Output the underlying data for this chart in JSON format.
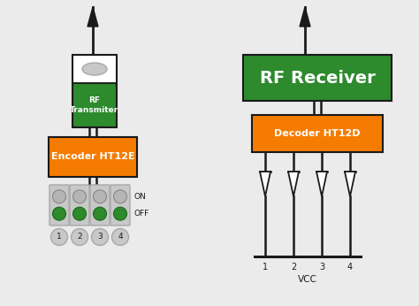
{
  "bg_color": "#ebebeb",
  "green_color": "#2d8a2d",
  "orange_color": "#f57c00",
  "white_color": "#ffffff",
  "gray_light": "#c8c8c8",
  "gray_med": "#a8a8a8",
  "dark_color": "#1a1a1a",
  "text_white": "#ffffff",
  "text_dark": "#1a1a1a",
  "transmitter_label": "RF\nTransmiter",
  "encoder_label": "Encoder HT12E",
  "receiver_label": "RF Receiver",
  "decoder_label": "Decoder HT12D",
  "on_label": "ON",
  "off_label": "OFF",
  "vcc_label": "VCC",
  "switch_numbers": [
    "1",
    "2",
    "3",
    "4"
  ],
  "output_numbers": [
    "1",
    "2",
    "3",
    "4"
  ],
  "figw": 4.74,
  "figh": 3.46,
  "dpi": 100
}
